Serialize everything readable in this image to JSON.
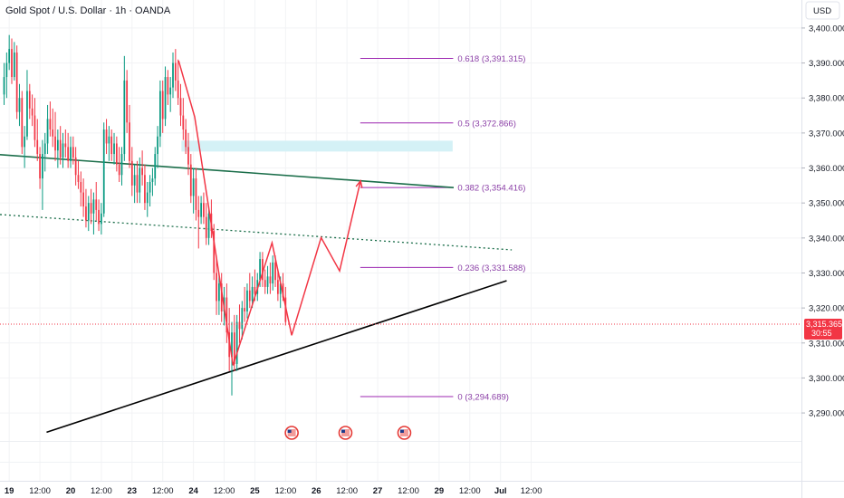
{
  "header": {
    "title": "Gold Spot / U.S. Dollar · 1h · OANDA",
    "currency": "USD"
  },
  "price_tag": {
    "price": "3,315.365",
    "countdown": "30:55"
  },
  "colors": {
    "up": "#089981",
    "down": "#f23645",
    "fib": "#9c27b0",
    "zone": "#d4f1f6",
    "upper_trendline": "#1b6e4a",
    "dotted_trendline": "#1b6e4a",
    "support_trendline": "#000000",
    "projection": "#f23645",
    "current_price_line": "#f23645",
    "event_icon": "#e53935"
  },
  "chart_data": {
    "type": "candlestick",
    "title": "Gold Spot / U.S. Dollar · 1h · OANDA",
    "y_axis": {
      "unit": "USD",
      "ylim": [
        3282,
        3408
      ],
      "ticks": [
        3290,
        3300,
        3310,
        3320,
        3330,
        3340,
        3350,
        3360,
        3370,
        3380,
        3390,
        3400
      ],
      "tick_labels": [
        "3,290.000",
        "3,300.000",
        "3,310.000",
        "3,320.000",
        "3,330.000",
        "3,340.000",
        "3,350.000",
        "3,360.000",
        "3,370.000",
        "3,380.000",
        "3,390.000",
        "3,400.000"
      ]
    },
    "x_axis": {
      "unit": "hours since 19 Jun 00:00",
      "xlim": [
        -3.6,
        309.6
      ],
      "ticks": [
        {
          "t": 0,
          "label": "19",
          "bold": true
        },
        {
          "t": 12,
          "label": "12:00",
          "bold": false
        },
        {
          "t": 24,
          "label": "20",
          "bold": true
        },
        {
          "t": 36,
          "label": "12:00",
          "bold": false
        },
        {
          "t": 48,
          "label": "23",
          "bold": true
        },
        {
          "t": 60,
          "label": "12:00",
          "bold": false
        },
        {
          "t": 72,
          "label": "24",
          "bold": true
        },
        {
          "t": 84,
          "label": "12:00",
          "bold": false
        },
        {
          "t": 96,
          "label": "25",
          "bold": true
        },
        {
          "t": 108,
          "label": "12:00",
          "bold": false
        },
        {
          "t": 120,
          "label": "26",
          "bold": true
        },
        {
          "t": 132,
          "label": "12:00",
          "bold": false
        },
        {
          "t": 144,
          "label": "27",
          "bold": true
        },
        {
          "t": 156,
          "label": "12:00",
          "bold": false
        },
        {
          "t": 168,
          "label": "29",
          "bold": true
        },
        {
          "t": 180,
          "label": "12:00",
          "bold": false
        },
        {
          "t": 192,
          "label": "Jul",
          "bold": true
        },
        {
          "t": 204,
          "label": "12:00",
          "bold": false
        }
      ]
    },
    "candles": [
      {
        "t": -2,
        "o": 3381,
        "h": 3390,
        "l": 3378,
        "c": 3386
      },
      {
        "t": -1,
        "o": 3386,
        "h": 3393,
        "l": 3380,
        "c": 3390
      },
      {
        "t": 0,
        "o": 3390,
        "h": 3398,
        "l": 3388,
        "c": 3394
      },
      {
        "t": 1,
        "o": 3394,
        "h": 3397,
        "l": 3384,
        "c": 3386
      },
      {
        "t": 2,
        "o": 3386,
        "h": 3396,
        "l": 3385,
        "c": 3393
      },
      {
        "t": 3,
        "o": 3393,
        "h": 3395,
        "l": 3374,
        "c": 3376
      },
      {
        "t": 4,
        "o": 3376,
        "h": 3384,
        "l": 3372,
        "c": 3380
      },
      {
        "t": 5,
        "o": 3380,
        "h": 3382,
        "l": 3364,
        "c": 3366
      },
      {
        "t": 6,
        "o": 3366,
        "h": 3372,
        "l": 3360,
        "c": 3369
      },
      {
        "t": 7,
        "o": 3369,
        "h": 3388,
        "l": 3368,
        "c": 3382
      },
      {
        "t": 8,
        "o": 3382,
        "h": 3384,
        "l": 3374,
        "c": 3377
      },
      {
        "t": 9,
        "o": 3377,
        "h": 3381,
        "l": 3372,
        "c": 3375
      },
      {
        "t": 10,
        "o": 3375,
        "h": 3380,
        "l": 3366,
        "c": 3368
      },
      {
        "t": 11,
        "o": 3368,
        "h": 3374,
        "l": 3362,
        "c": 3364
      },
      {
        "t": 12,
        "o": 3364,
        "h": 3366,
        "l": 3354,
        "c": 3357
      },
      {
        "t": 13,
        "o": 3357,
        "h": 3368,
        "l": 3348,
        "c": 3364
      },
      {
        "t": 14,
        "o": 3364,
        "h": 3370,
        "l": 3359,
        "c": 3367
      },
      {
        "t": 15,
        "o": 3367,
        "h": 3378,
        "l": 3364,
        "c": 3374
      },
      {
        "t": 16,
        "o": 3374,
        "h": 3379,
        "l": 3369,
        "c": 3371
      },
      {
        "t": 17,
        "o": 3371,
        "h": 3377,
        "l": 3366,
        "c": 3369
      },
      {
        "t": 18,
        "o": 3369,
        "h": 3376,
        "l": 3362,
        "c": 3365
      },
      {
        "t": 19,
        "o": 3365,
        "h": 3371,
        "l": 3360,
        "c": 3368
      },
      {
        "t": 20,
        "o": 3368,
        "h": 3372,
        "l": 3361,
        "c": 3363
      },
      {
        "t": 21,
        "o": 3363,
        "h": 3370,
        "l": 3360,
        "c": 3367
      },
      {
        "t": 22,
        "o": 3367,
        "h": 3371,
        "l": 3363,
        "c": 3366
      },
      {
        "t": 23,
        "o": 3366,
        "h": 3370,
        "l": 3360,
        "c": 3362
      },
      {
        "t": 24,
        "o": 3362,
        "h": 3369,
        "l": 3360,
        "c": 3366
      },
      {
        "t": 25,
        "o": 3366,
        "h": 3369,
        "l": 3361,
        "c": 3363
      },
      {
        "t": 26,
        "o": 3363,
        "h": 3366,
        "l": 3355,
        "c": 3358
      },
      {
        "t": 27,
        "o": 3358,
        "h": 3362,
        "l": 3354,
        "c": 3356
      },
      {
        "t": 28,
        "o": 3356,
        "h": 3359,
        "l": 3349,
        "c": 3353
      },
      {
        "t": 29,
        "o": 3353,
        "h": 3357,
        "l": 3346,
        "c": 3349
      },
      {
        "t": 30,
        "o": 3349,
        "h": 3354,
        "l": 3343,
        "c": 3345
      },
      {
        "t": 31,
        "o": 3345,
        "h": 3352,
        "l": 3342,
        "c": 3350
      },
      {
        "t": 32,
        "o": 3350,
        "h": 3354,
        "l": 3344,
        "c": 3347
      },
      {
        "t": 33,
        "o": 3347,
        "h": 3353,
        "l": 3341,
        "c": 3351
      },
      {
        "t": 34,
        "o": 3351,
        "h": 3356,
        "l": 3345,
        "c": 3348
      },
      {
        "t": 35,
        "o": 3348,
        "h": 3351,
        "l": 3342,
        "c": 3344
      },
      {
        "t": 36,
        "o": 3344,
        "h": 3350,
        "l": 3341,
        "c": 3347
      },
      {
        "t": 37,
        "o": 3347,
        "h": 3373,
        "l": 3346,
        "c": 3371
      },
      {
        "t": 38,
        "o": 3371,
        "h": 3374,
        "l": 3364,
        "c": 3367
      },
      {
        "t": 39,
        "o": 3367,
        "h": 3372,
        "l": 3362,
        "c": 3369
      },
      {
        "t": 40,
        "o": 3369,
        "h": 3371,
        "l": 3362,
        "c": 3364
      },
      {
        "t": 41,
        "o": 3364,
        "h": 3370,
        "l": 3361,
        "c": 3367
      },
      {
        "t": 42,
        "o": 3367,
        "h": 3369,
        "l": 3359,
        "c": 3361
      },
      {
        "t": 43,
        "o": 3361,
        "h": 3366,
        "l": 3356,
        "c": 3358
      },
      {
        "t": 44,
        "o": 3358,
        "h": 3366,
        "l": 3355,
        "c": 3364
      },
      {
        "t": 45,
        "o": 3364,
        "h": 3392,
        "l": 3362,
        "c": 3385
      },
      {
        "t": 46,
        "o": 3385,
        "h": 3388,
        "l": 3370,
        "c": 3373
      },
      {
        "t": 47,
        "o": 3373,
        "h": 3378,
        "l": 3360,
        "c": 3362
      },
      {
        "t": 48,
        "o": 3362,
        "h": 3366,
        "l": 3352,
        "c": 3355
      },
      {
        "t": 49,
        "o": 3355,
        "h": 3361,
        "l": 3350,
        "c": 3358
      },
      {
        "t": 50,
        "o": 3358,
        "h": 3362,
        "l": 3350,
        "c": 3353
      },
      {
        "t": 51,
        "o": 3353,
        "h": 3363,
        "l": 3350,
        "c": 3360
      },
      {
        "t": 52,
        "o": 3360,
        "h": 3365,
        "l": 3355,
        "c": 3358
      },
      {
        "t": 53,
        "o": 3358,
        "h": 3361,
        "l": 3348,
        "c": 3350
      },
      {
        "t": 54,
        "o": 3350,
        "h": 3356,
        "l": 3346,
        "c": 3353
      },
      {
        "t": 55,
        "o": 3353,
        "h": 3358,
        "l": 3349,
        "c": 3356
      },
      {
        "t": 56,
        "o": 3356,
        "h": 3360,
        "l": 3352,
        "c": 3357
      },
      {
        "t": 57,
        "o": 3357,
        "h": 3366,
        "l": 3355,
        "c": 3364
      },
      {
        "t": 58,
        "o": 3364,
        "h": 3372,
        "l": 3360,
        "c": 3369
      },
      {
        "t": 59,
        "o": 3369,
        "h": 3385,
        "l": 3366,
        "c": 3382
      },
      {
        "t": 60,
        "o": 3382,
        "h": 3385,
        "l": 3370,
        "c": 3374
      },
      {
        "t": 61,
        "o": 3374,
        "h": 3389,
        "l": 3372,
        "c": 3386
      },
      {
        "t": 62,
        "o": 3386,
        "h": 3388,
        "l": 3378,
        "c": 3381
      },
      {
        "t": 63,
        "o": 3381,
        "h": 3386,
        "l": 3376,
        "c": 3383
      },
      {
        "t": 64,
        "o": 3383,
        "h": 3393,
        "l": 3380,
        "c": 3390
      },
      {
        "t": 65,
        "o": 3390,
        "h": 3394,
        "l": 3382,
        "c": 3385
      },
      {
        "t": 66,
        "o": 3385,
        "h": 3391,
        "l": 3378,
        "c": 3380
      },
      {
        "t": 67,
        "o": 3380,
        "h": 3384,
        "l": 3372,
        "c": 3375
      },
      {
        "t": 68,
        "o": 3375,
        "h": 3380,
        "l": 3368,
        "c": 3371
      },
      {
        "t": 69,
        "o": 3371,
        "h": 3374,
        "l": 3364,
        "c": 3366
      },
      {
        "t": 70,
        "o": 3366,
        "h": 3370,
        "l": 3358,
        "c": 3361
      },
      {
        "t": 71,
        "o": 3361,
        "h": 3364,
        "l": 3350,
        "c": 3352
      },
      {
        "t": 72,
        "o": 3352,
        "h": 3360,
        "l": 3347,
        "c": 3357
      },
      {
        "t": 73,
        "o": 3357,
        "h": 3360,
        "l": 3345,
        "c": 3348
      },
      {
        "t": 74,
        "o": 3348,
        "h": 3352,
        "l": 3337,
        "c": 3346
      },
      {
        "t": 75,
        "o": 3346,
        "h": 3352,
        "l": 3344,
        "c": 3350
      },
      {
        "t": 76,
        "o": 3350,
        "h": 3353,
        "l": 3344,
        "c": 3346
      },
      {
        "t": 77,
        "o": 3346,
        "h": 3350,
        "l": 3338,
        "c": 3340
      },
      {
        "t": 78,
        "o": 3340,
        "h": 3349,
        "l": 3338,
        "c": 3347
      },
      {
        "t": 79,
        "o": 3347,
        "h": 3351,
        "l": 3340,
        "c": 3342
      },
      {
        "t": 80,
        "o": 3342,
        "h": 3344,
        "l": 3328,
        "c": 3330
      },
      {
        "t": 81,
        "o": 3330,
        "h": 3334,
        "l": 3318,
        "c": 3322
      },
      {
        "t": 82,
        "o": 3322,
        "h": 3330,
        "l": 3318,
        "c": 3327
      },
      {
        "t": 83,
        "o": 3327,
        "h": 3330,
        "l": 3316,
        "c": 3319
      },
      {
        "t": 84,
        "o": 3319,
        "h": 3326,
        "l": 3315,
        "c": 3323
      },
      {
        "t": 85,
        "o": 3323,
        "h": 3327,
        "l": 3310,
        "c": 3313
      },
      {
        "t": 86,
        "o": 3313,
        "h": 3320,
        "l": 3302,
        "c": 3306
      },
      {
        "t": 87,
        "o": 3306,
        "h": 3316,
        "l": 3295,
        "c": 3313
      },
      {
        "t": 88,
        "o": 3313,
        "h": 3318,
        "l": 3302,
        "c": 3304
      },
      {
        "t": 89,
        "o": 3304,
        "h": 3318,
        "l": 3302,
        "c": 3316
      },
      {
        "t": 90,
        "o": 3316,
        "h": 3321,
        "l": 3310,
        "c": 3314
      },
      {
        "t": 91,
        "o": 3314,
        "h": 3322,
        "l": 3311,
        "c": 3320
      },
      {
        "t": 92,
        "o": 3320,
        "h": 3326,
        "l": 3316,
        "c": 3319
      },
      {
        "t": 93,
        "o": 3319,
        "h": 3327,
        "l": 3317,
        "c": 3325
      },
      {
        "t": 94,
        "o": 3325,
        "h": 3330,
        "l": 3320,
        "c": 3322
      },
      {
        "t": 95,
        "o": 3322,
        "h": 3329,
        "l": 3320,
        "c": 3326
      },
      {
        "t": 96,
        "o": 3326,
        "h": 3331,
        "l": 3322,
        "c": 3324
      },
      {
        "t": 97,
        "o": 3324,
        "h": 3330,
        "l": 3322,
        "c": 3328
      },
      {
        "t": 98,
        "o": 3328,
        "h": 3336,
        "l": 3326,
        "c": 3334
      },
      {
        "t": 99,
        "o": 3334,
        "h": 3336,
        "l": 3326,
        "c": 3328
      },
      {
        "t": 100,
        "o": 3328,
        "h": 3331,
        "l": 3324,
        "c": 3326
      },
      {
        "t": 101,
        "o": 3326,
        "h": 3332,
        "l": 3324,
        "c": 3329
      },
      {
        "t": 102,
        "o": 3329,
        "h": 3333,
        "l": 3324,
        "c": 3327
      },
      {
        "t": 103,
        "o": 3327,
        "h": 3335,
        "l": 3325,
        "c": 3333
      },
      {
        "t": 104,
        "o": 3333,
        "h": 3335,
        "l": 3326,
        "c": 3328
      },
      {
        "t": 105,
        "o": 3328,
        "h": 3331,
        "l": 3322,
        "c": 3324
      },
      {
        "t": 106,
        "o": 3324,
        "h": 3329,
        "l": 3320,
        "c": 3327
      },
      {
        "t": 107,
        "o": 3327,
        "h": 3330,
        "l": 3322,
        "c": 3323
      },
      {
        "t": 108,
        "o": 3323,
        "h": 3326,
        "l": 3315,
        "c": 3316
      }
    ],
    "current_price": 3315.365,
    "fibonacci": {
      "t_start": 137.2,
      "t_end": 173.5,
      "levels": [
        {
          "ratio": "0.618",
          "price": 3391.315,
          "label": "0.618 (3,391.315)"
        },
        {
          "ratio": "0.5",
          "price": 3372.866,
          "label": "0.5 (3,372.866)"
        },
        {
          "ratio": "0.382",
          "price": 3354.416,
          "label": "0.382 (3,354.416)"
        },
        {
          "ratio": "0.236",
          "price": 3331.588,
          "label": "0.236 (3,331.588)"
        },
        {
          "ratio": "0",
          "price": 3294.689,
          "label": "0 (3,294.689)"
        }
      ]
    },
    "trendlines": [
      {
        "name": "upper-resistance",
        "style": "solid",
        "t1": -3.6,
        "p1": 3363.8,
        "t2": 173.7,
        "p2": 3354.4
      },
      {
        "name": "dotted-resistance",
        "style": "dotted",
        "t1": -3.6,
        "p1": 3346.7,
        "t2": 196.4,
        "p2": 3336.6
      },
      {
        "name": "rising-support",
        "style": "solid",
        "t1": 14.6,
        "p1": 3284.5,
        "t2": 194.4,
        "p2": 3327.8
      }
    ],
    "supply_zone": {
      "t1": 67.3,
      "t2": 173.3,
      "p_low": 3364.7,
      "p_high": 3367.8
    },
    "projection_path": [
      {
        "t": 66.2,
        "p": 3390.7
      },
      {
        "t": 72.5,
        "p": 3374.6
      },
      {
        "t": 87.5,
        "p": 3303.6
      },
      {
        "t": 102.7,
        "p": 3338.6
      },
      {
        "t": 110.4,
        "p": 3312.2
      },
      {
        "t": 121.9,
        "p": 3340.1
      },
      {
        "t": 129.1,
        "p": 3330.6
      },
      {
        "t": 137.3,
        "p": 3356.3
      }
    ],
    "events": [
      {
        "t": 110.4,
        "name": "us-economic-event"
      },
      {
        "t": 131.4,
        "name": "us-economic-event"
      },
      {
        "t": 154.4,
        "name": "us-economic-event"
      }
    ]
  }
}
